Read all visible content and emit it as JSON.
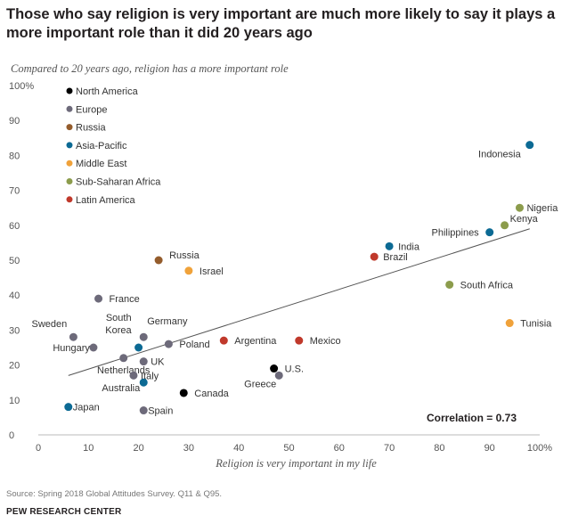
{
  "chart_data": {
    "type": "scatter",
    "title": "Those who say religion is very important are much more likely to say it plays a more important role than it did 20 years ago",
    "subtitle": "Compared to 20 years ago, religion has a more important role",
    "xlabel": "Religion is very important in my life",
    "ylabel": "",
    "xlim": [
      0,
      100
    ],
    "ylim": [
      0,
      100
    ],
    "xticks": [
      "0",
      "10",
      "20",
      "30",
      "40",
      "50",
      "60",
      "70",
      "80",
      "90",
      "100%"
    ],
    "yticks": [
      "0",
      "10",
      "20",
      "30",
      "40",
      "50",
      "60",
      "70",
      "80",
      "90",
      "100%"
    ],
    "legend": [
      {
        "name": "North America",
        "color": "#000000"
      },
      {
        "name": "Europe",
        "color": "#6d6a7a"
      },
      {
        "name": "Russia",
        "color": "#945c2c"
      },
      {
        "name": "Asia-Pacific",
        "color": "#0c6a94"
      },
      {
        "name": "Middle East",
        "color": "#f0a23a"
      },
      {
        "name": "Sub-Saharan Africa",
        "color": "#8c9c4c"
      },
      {
        "name": "Latin America",
        "color": "#c0392b"
      }
    ],
    "points": [
      {
        "label": "Indonesia",
        "region": "Asia-Pacific",
        "x": 98,
        "y": 83
      },
      {
        "label": "Nigeria",
        "region": "Sub-Saharan Africa",
        "x": 96,
        "y": 65
      },
      {
        "label": "Kenya",
        "region": "Sub-Saharan Africa",
        "x": 93,
        "y": 60
      },
      {
        "label": "Philippines",
        "region": "Asia-Pacific",
        "x": 90,
        "y": 58
      },
      {
        "label": "India",
        "region": "Asia-Pacific",
        "x": 70,
        "y": 54
      },
      {
        "label": "Brazil",
        "region": "Latin America",
        "x": 67,
        "y": 51
      },
      {
        "label": "South Africa",
        "region": "Sub-Saharan Africa",
        "x": 82,
        "y": 43
      },
      {
        "label": "Tunisia",
        "region": "Middle East",
        "x": 94,
        "y": 32
      },
      {
        "label": "Russia",
        "region": "Russia",
        "x": 24,
        "y": 50
      },
      {
        "label": "Israel",
        "region": "Middle East",
        "x": 30,
        "y": 47
      },
      {
        "label": "France",
        "region": "Europe",
        "x": 12,
        "y": 39
      },
      {
        "label": "Sweden",
        "region": "Europe",
        "x": 7,
        "y": 28
      },
      {
        "label": "Hungary",
        "region": "Europe",
        "x": 11,
        "y": 25
      },
      {
        "label": "South Korea",
        "region": "Asia-Pacific",
        "x": 20,
        "y": 25
      },
      {
        "label": "Germany",
        "region": "Europe",
        "x": 21,
        "y": 28
      },
      {
        "label": "Poland",
        "region": "Europe",
        "x": 26,
        "y": 26
      },
      {
        "label": "Netherlands",
        "region": "Europe",
        "x": 17,
        "y": 22
      },
      {
        "label": "UK",
        "region": "Europe",
        "x": 21,
        "y": 21
      },
      {
        "label": "Italy",
        "region": "Europe",
        "x": 19,
        "y": 17
      },
      {
        "label": "Australia",
        "region": "Asia-Pacific",
        "x": 21,
        "y": 15
      },
      {
        "label": "Argentina",
        "region": "Latin America",
        "x": 37,
        "y": 27
      },
      {
        "label": "Mexico",
        "region": "Latin America",
        "x": 52,
        "y": 27
      },
      {
        "label": "U.S.",
        "region": "North America",
        "x": 47,
        "y": 19
      },
      {
        "label": "Greece",
        "region": "Europe",
        "x": 48,
        "y": 17
      },
      {
        "label": "Canada",
        "region": "North America",
        "x": 29,
        "y": 12
      },
      {
        "label": "Japan",
        "region": "Asia-Pacific",
        "x": 6,
        "y": 8
      },
      {
        "label": "Spain",
        "region": "Europe",
        "x": 21,
        "y": 7
      }
    ],
    "trendline": {
      "x1": 6,
      "y1": 17,
      "x2": 98,
      "y2": 59
    },
    "annotation": "Correlation = 0.73"
  },
  "footer": {
    "source": "Source: Spring 2018 Global Attitudes Survey. Q11 & Q95.",
    "org": "PEW RESEARCH CENTER"
  }
}
